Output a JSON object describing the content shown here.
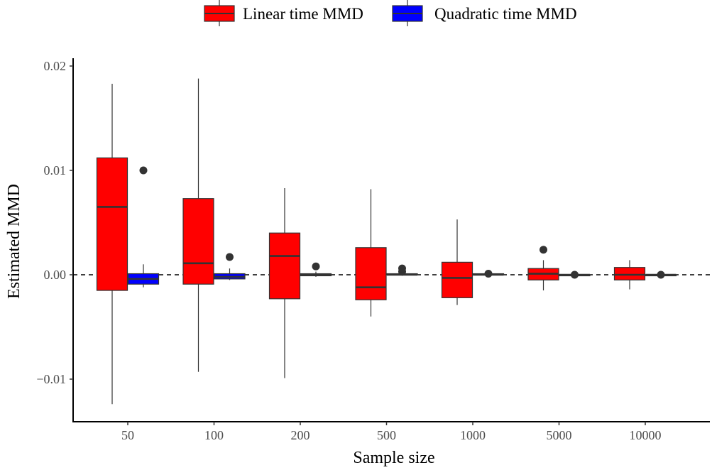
{
  "chart_data": {
    "type": "boxplot",
    "xlabel": "Sample size",
    "ylabel": "Estimated MMD",
    "categories": [
      "50",
      "100",
      "200",
      "500",
      "1000",
      "5000",
      "10000"
    ],
    "y_ticks": [
      -0.01,
      0.0,
      0.01,
      0.02
    ],
    "y_tick_labels": [
      "−0.01",
      "0.00",
      "0.01",
      "0.02"
    ],
    "ylim": [
      -0.0142,
      0.0205
    ],
    "reference_line": {
      "y": 0,
      "style": "dashed"
    },
    "legend_position": "top",
    "grid": false,
    "series": [
      {
        "name": "Linear time MMD",
        "color": "#ff0000",
        "boxes": [
          {
            "whisker_low": -0.0124,
            "q1": -0.0015,
            "median": 0.0065,
            "q3": 0.0112,
            "whisker_high": 0.0183,
            "outliers": []
          },
          {
            "whisker_low": -0.0093,
            "q1": -0.0009,
            "median": 0.0011,
            "q3": 0.0073,
            "whisker_high": 0.0188,
            "outliers": []
          },
          {
            "whisker_low": -0.0099,
            "q1": -0.0023,
            "median": 0.0018,
            "q3": 0.004,
            "whisker_high": 0.0083,
            "outliers": []
          },
          {
            "whisker_low": -0.004,
            "q1": -0.0024,
            "median": -0.0012,
            "q3": 0.0026,
            "whisker_high": 0.0082,
            "outliers": []
          },
          {
            "whisker_low": -0.0029,
            "q1": -0.0022,
            "median": -0.0003,
            "q3": 0.0012,
            "whisker_high": 0.0053,
            "outliers": []
          },
          {
            "whisker_low": -0.0015,
            "q1": -0.0005,
            "median": 0.0001,
            "q3": 0.0006,
            "whisker_high": 0.0014,
            "outliers": [
              0.0024
            ]
          },
          {
            "whisker_low": -0.0014,
            "q1": -0.0005,
            "median": 0.0,
            "q3": 0.0007,
            "whisker_high": 0.0014,
            "outliers": []
          }
        ]
      },
      {
        "name": "Quadratic time MMD",
        "color": "#0000ff",
        "boxes": [
          {
            "whisker_low": -0.0012,
            "q1": -0.0009,
            "median": -0.0004,
            "q3": 0.0001,
            "whisker_high": 0.001,
            "outliers": [
              0.01
            ]
          },
          {
            "whisker_low": -0.0005,
            "q1": -0.0004,
            "median": -0.0002,
            "q3": 0.0001,
            "whisker_high": 0.0006,
            "outliers": [
              0.0017
            ]
          },
          {
            "whisker_low": -0.0002,
            "q1": -0.0001,
            "median": 0.0,
            "q3": 0.0001,
            "whisker_high": 0.0003,
            "outliers": [
              0.0008
            ]
          },
          {
            "whisker_low": -0.0001,
            "q1": 0.0,
            "median": 0.0,
            "q3": 0.0001,
            "whisker_high": 0.0002,
            "outliers": [
              0.0003,
              0.0006
            ]
          },
          {
            "whisker_low": 0.0,
            "q1": 0.0,
            "median": 0.0,
            "q3": 0.0001,
            "whisker_high": 0.0001,
            "outliers": [
              0.0001
            ]
          },
          {
            "whisker_low": 0.0,
            "q1": 0.0,
            "median": 0.0,
            "q3": 0.0,
            "whisker_high": 0.0,
            "outliers": [
              0.0
            ]
          },
          {
            "whisker_low": 0.0,
            "q1": 0.0,
            "median": 0.0,
            "q3": 0.0,
            "whisker_high": 0.0,
            "outliers": [
              0.0
            ]
          }
        ]
      }
    ]
  }
}
